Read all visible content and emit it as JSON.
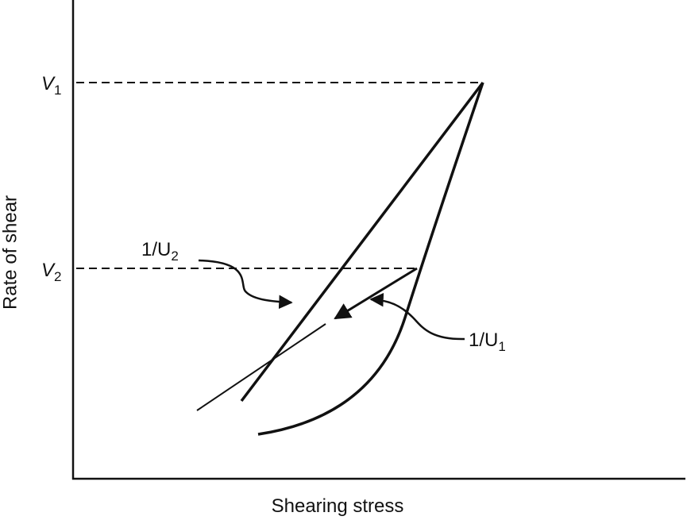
{
  "axes": {
    "y_label": "Rate of shear",
    "x_label": "Shearing stress"
  },
  "labels": {
    "v1": {
      "main": "V",
      "sub": "1"
    },
    "v2": {
      "main": "V",
      "sub": "2"
    },
    "u2": {
      "main": "1/U",
      "sub": "2"
    },
    "u1": {
      "main": "1/U",
      "sub": "1"
    }
  }
}
